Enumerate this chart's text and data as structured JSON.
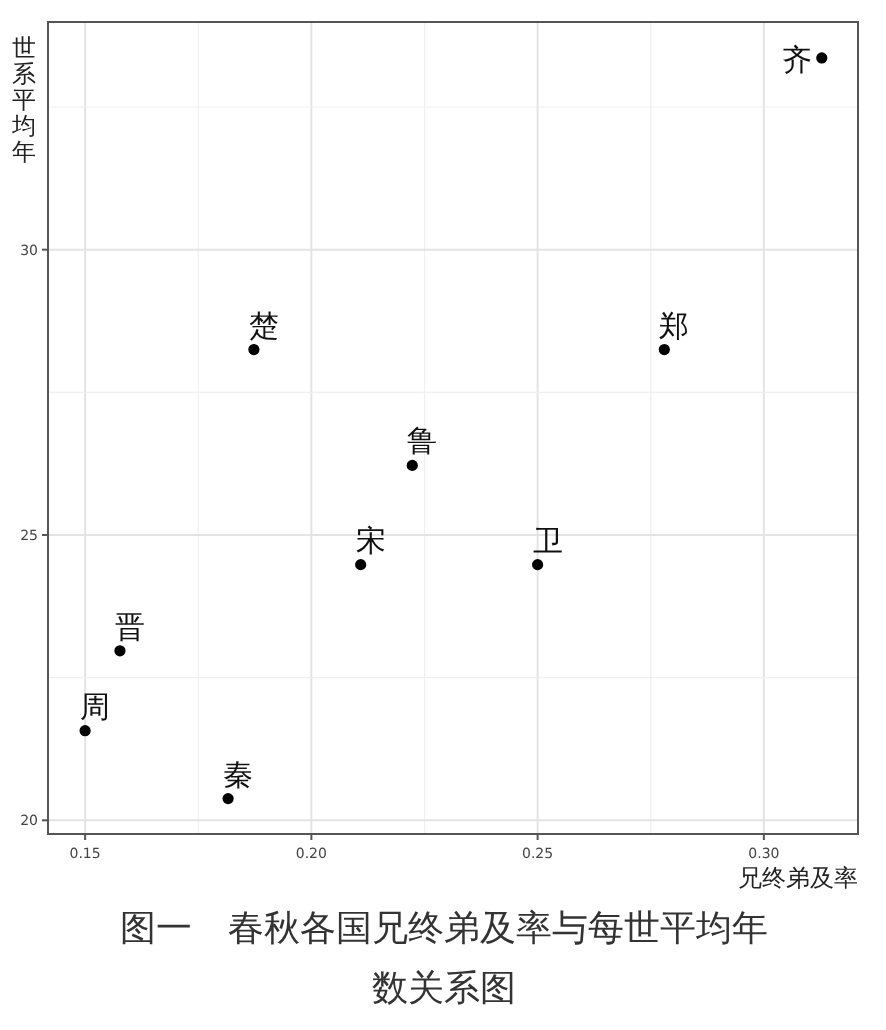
{
  "chart_data": {
    "type": "scatter",
    "xlabel": "兄终弟及率",
    "ylabel": "世系平均年",
    "x": [
      0.3128,
      0.1873,
      0.278,
      0.2223,
      0.2109,
      0.25,
      0.1577,
      0.15,
      0.1816
    ],
    "series": [
      {
        "color": "#000000",
        "values": [
          33.36,
          28.25,
          28.25,
          26.22,
          24.48,
          24.48,
          22.97,
          21.57,
          20.38
        ]
      }
    ],
    "xlim": [
      0.1418,
      0.3208
    ],
    "ylim": [
      19.76,
      33.99
    ],
    "xticks": [
      {
        "value": 0.15,
        "label": "0.15"
      },
      {
        "value": 0.2,
        "label": "0.20"
      },
      {
        "value": 0.25,
        "label": "0.25"
      },
      {
        "value": 0.3,
        "label": "0.30"
      }
    ],
    "yticks": [
      20,
      25,
      30
    ],
    "grid": true,
    "marker": "circle",
    "annotations": [
      {
        "text": "齐",
        "x": 0.3128,
        "y": 33.36
      },
      {
        "text": "楚",
        "x": 0.1873,
        "y": 28.25
      },
      {
        "text": "郑",
        "x": 0.278,
        "y": 28.25
      },
      {
        "text": "鲁",
        "x": 0.2223,
        "y": 26.22
      },
      {
        "text": "宋",
        "x": 0.2109,
        "y": 24.48
      },
      {
        "text": "卫",
        "x": 0.25,
        "y": 24.48
      },
      {
        "text": "晋",
        "x": 0.1577,
        "y": 22.97
      },
      {
        "text": "周",
        "x": 0.15,
        "y": 21.57
      },
      {
        "text": "秦",
        "x": 0.1816,
        "y": 20.38
      },
      "图一　春秋各国兄终弟及率与每世平均年数关系图"
    ]
  }
}
